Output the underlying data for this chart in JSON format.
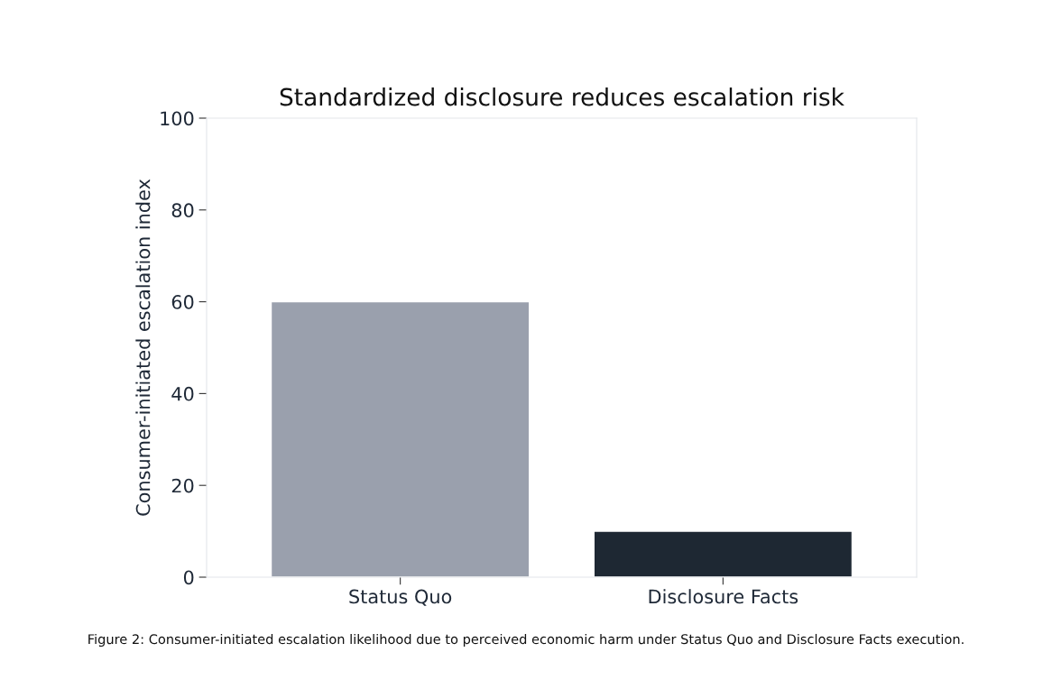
{
  "chart_data": {
    "type": "bar",
    "title": "Standardized disclosure reduces escalation risk",
    "ylabel": "Consumer-initiated escalation index",
    "categories": [
      "Status Quo",
      "Disclosure Facts"
    ],
    "values": [
      60,
      10
    ],
    "colors": [
      "#9aa0ad",
      "#1e2833"
    ],
    "ylim": [
      0,
      100
    ],
    "yticks": [
      0,
      20,
      40,
      60,
      80,
      100
    ],
    "grid": false,
    "legend": false,
    "annotations": [
      "Figure 2: Consumer-initiated escalation likelihood due to perceived economic harm under Status Quo and Disclosure Facts execution."
    ]
  }
}
